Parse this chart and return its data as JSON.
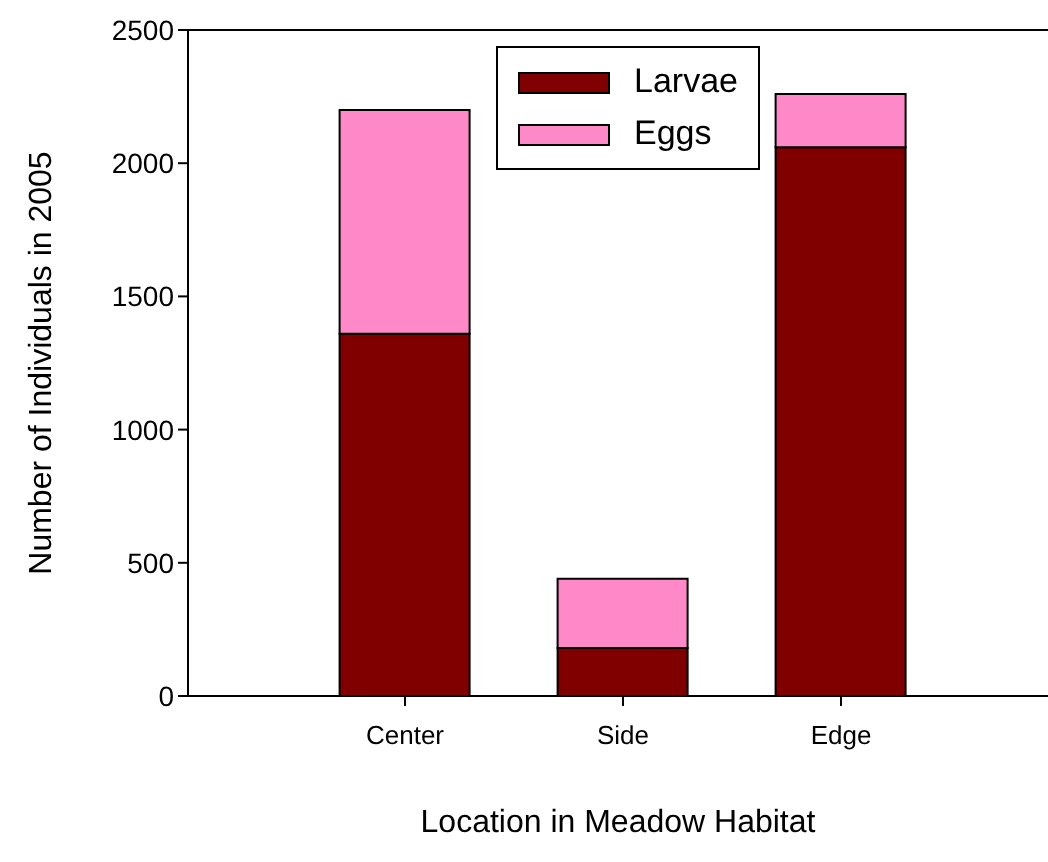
{
  "chart_data": {
    "type": "bar",
    "stacked": true,
    "xlabel": "Location in Meadow Habitat",
    "ylabel": "Number of Individuals in 2005",
    "categories": [
      "Center",
      "Side",
      "Edge"
    ],
    "series": [
      {
        "name": "Larvae",
        "color": "#800000",
        "values": [
          1360,
          180,
          2060
        ]
      },
      {
        "name": "Eggs",
        "color": "#ff88c8",
        "values": [
          840,
          260,
          200
        ]
      }
    ],
    "ylim": [
      0,
      2500
    ],
    "yticks": [
      0,
      500,
      1000,
      1500,
      2000,
      2500
    ],
    "legend": "top"
  }
}
